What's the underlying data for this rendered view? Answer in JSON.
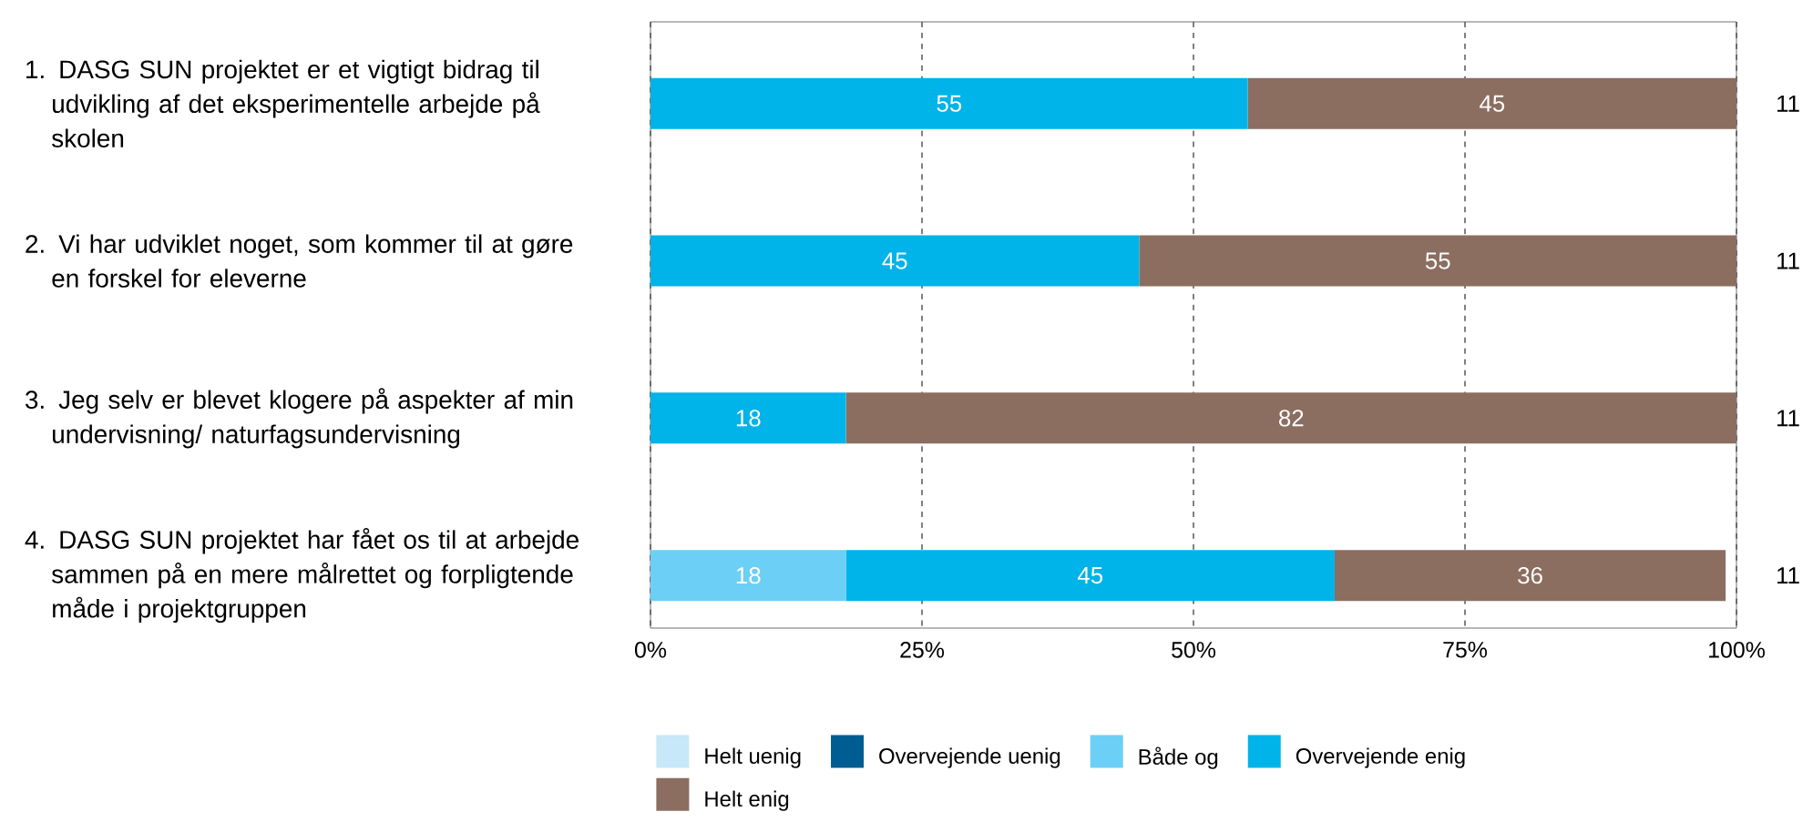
{
  "chart_data": {
    "type": "bar",
    "orientation": "horizontal",
    "stacked": true,
    "categories": [
      "1. DASG SUN projektet er et vigtigt bidrag til udvikling af det eksperimentelle arbejde på skolen",
      "2. Vi har udviklet noget, som kommer til at gøre en forskel for eleverne",
      "3. Jeg selv er blevet klogere på aspekter af min undervisning/ naturfagsundervisning",
      "4. DASG SUN projektet har fået os til at arbejde sammen på en mere målrettet og forpligtende måde i projektgruppen"
    ],
    "series": [
      {
        "name": "Helt uenig",
        "color": "#c6e8f8",
        "values": [
          0,
          0,
          0,
          0
        ],
        "value_labels": [
          null,
          null,
          null,
          null
        ]
      },
      {
        "name": "Overvejende uenig",
        "color": "#005d93",
        "values": [
          0,
          0,
          0,
          0
        ],
        "value_labels": [
          null,
          null,
          null,
          null
        ]
      },
      {
        "name": "Både og",
        "color": "#6ccff6",
        "values": [
          0,
          0,
          0,
          18
        ],
        "value_labels": [
          null,
          null,
          null,
          "18"
        ]
      },
      {
        "name": "Overvejende enig",
        "color": "#00b3e8",
        "values": [
          55,
          45,
          18,
          45
        ],
        "value_labels": [
          "55",
          "45",
          "18",
          "45"
        ]
      },
      {
        "name": "Helt enig",
        "color": "#8b6e60",
        "values": [
          45,
          55,
          82,
          36
        ],
        "value_labels": [
          "45",
          "55",
          "82",
          "36"
        ]
      }
    ],
    "xlim": [
      0,
      100
    ],
    "xticks": [
      {
        "value": 0,
        "label": "0%"
      },
      {
        "value": 25,
        "label": "25%"
      },
      {
        "value": 50,
        "label": "50%"
      },
      {
        "value": 75,
        "label": "75%"
      },
      {
        "value": 100,
        "label": "100%"
      }
    ],
    "grid": "x",
    "legend": "bottom",
    "annotations": [
      "11",
      "11",
      "11",
      "11"
    ]
  }
}
